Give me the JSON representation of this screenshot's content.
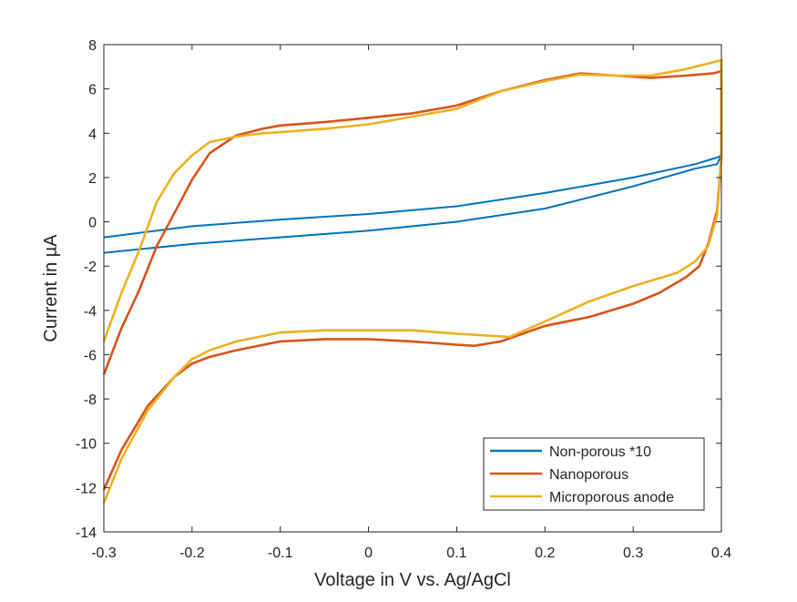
{
  "chart_data": {
    "type": "line",
    "title": "",
    "xlabel": "Voltage in V  vs. Ag/AgCl",
    "ylabel": "Current in µA",
    "xlim": [
      -0.3,
      0.4
    ],
    "ylim": [
      -14,
      8
    ],
    "xticks": [
      -0.3,
      -0.2,
      -0.1,
      0,
      0.1,
      0.2,
      0.3,
      0.4
    ],
    "yticks": [
      -14,
      -12,
      -10,
      -8,
      -6,
      -4,
      -2,
      0,
      2,
      4,
      6,
      8
    ],
    "xtick_labels": [
      "-0.3",
      "-0.2",
      "-0.1",
      "0",
      "0.1",
      "0.2",
      "0.3",
      "0.4"
    ],
    "ytick_labels": [
      "-14",
      "-12",
      "-10",
      "-8",
      "-6",
      "-4",
      "-2",
      "0",
      "2",
      "4",
      "6",
      "8"
    ],
    "grid": false,
    "legend_position": "bottom-right",
    "series": [
      {
        "name": "Non-porous *10",
        "color": "#0072BD",
        "x": [
          -0.3,
          -0.2,
          -0.1,
          0,
          0.1,
          0.2,
          0.3,
          0.37,
          0.395,
          0.4,
          0.395,
          0.37,
          0.3,
          0.2,
          0.1,
          0,
          -0.1,
          -0.2,
          -0.3
        ],
        "y": [
          -0.7,
          -0.2,
          0.1,
          0.35,
          0.7,
          1.3,
          2.0,
          2.6,
          2.9,
          3.0,
          2.6,
          2.4,
          1.6,
          0.6,
          0.0,
          -0.4,
          -0.7,
          -1.0,
          -1.4
        ]
      },
      {
        "name": "Nanoporous",
        "color": "#D95319",
        "x": [
          -0.3,
          -0.28,
          -0.26,
          -0.24,
          -0.22,
          -0.2,
          -0.18,
          -0.15,
          -0.12,
          -0.1,
          -0.05,
          0,
          0.05,
          0.1,
          0.15,
          0.2,
          0.24,
          0.28,
          0.32,
          0.36,
          0.39,
          0.4,
          0.4,
          0.395,
          0.385,
          0.375,
          0.36,
          0.33,
          0.3,
          0.25,
          0.2,
          0.15,
          0.12,
          0.1,
          0.05,
          0,
          -0.05,
          -0.1,
          -0.15,
          -0.18,
          -0.2,
          -0.22,
          -0.25,
          -0.28,
          -0.3
        ],
        "y": [
          -6.9,
          -4.8,
          -3.1,
          -1.1,
          0.4,
          1.9,
          3.1,
          3.9,
          4.2,
          4.35,
          4.5,
          4.7,
          4.9,
          5.25,
          5.9,
          6.4,
          6.7,
          6.6,
          6.5,
          6.6,
          6.7,
          6.8,
          2.9,
          0.5,
          -1.0,
          -2.0,
          -2.5,
          -3.2,
          -3.7,
          -4.3,
          -4.7,
          -5.4,
          -5.6,
          -5.55,
          -5.4,
          -5.3,
          -5.3,
          -5.4,
          -5.8,
          -6.1,
          -6.4,
          -7.0,
          -8.3,
          -10.3,
          -12.1
        ]
      },
      {
        "name": "Microporous anode",
        "color": "#EDB120",
        "x": [
          -0.3,
          -0.28,
          -0.26,
          -0.24,
          -0.22,
          -0.2,
          -0.18,
          -0.15,
          -0.12,
          -0.1,
          -0.05,
          0,
          0.05,
          0.1,
          0.15,
          0.2,
          0.24,
          0.28,
          0.32,
          0.36,
          0.39,
          0.4,
          0.4,
          0.395,
          0.385,
          0.37,
          0.35,
          0.3,
          0.25,
          0.2,
          0.16,
          0.12,
          0.1,
          0.05,
          0,
          -0.05,
          -0.1,
          -0.15,
          -0.18,
          -0.2,
          -0.22,
          -0.25,
          -0.28,
          -0.3
        ],
        "y": [
          -5.4,
          -3.2,
          -1.3,
          0.9,
          2.2,
          3.0,
          3.6,
          3.85,
          4.0,
          4.05,
          4.2,
          4.4,
          4.75,
          5.1,
          5.9,
          6.35,
          6.65,
          6.6,
          6.6,
          6.9,
          7.2,
          7.3,
          2.9,
          0.3,
          -1.1,
          -1.8,
          -2.3,
          -2.9,
          -3.6,
          -4.5,
          -5.2,
          -5.1,
          -5.05,
          -4.9,
          -4.9,
          -4.9,
          -5.0,
          -5.4,
          -5.8,
          -6.2,
          -7.0,
          -8.5,
          -10.7,
          -12.7
        ]
      }
    ]
  }
}
